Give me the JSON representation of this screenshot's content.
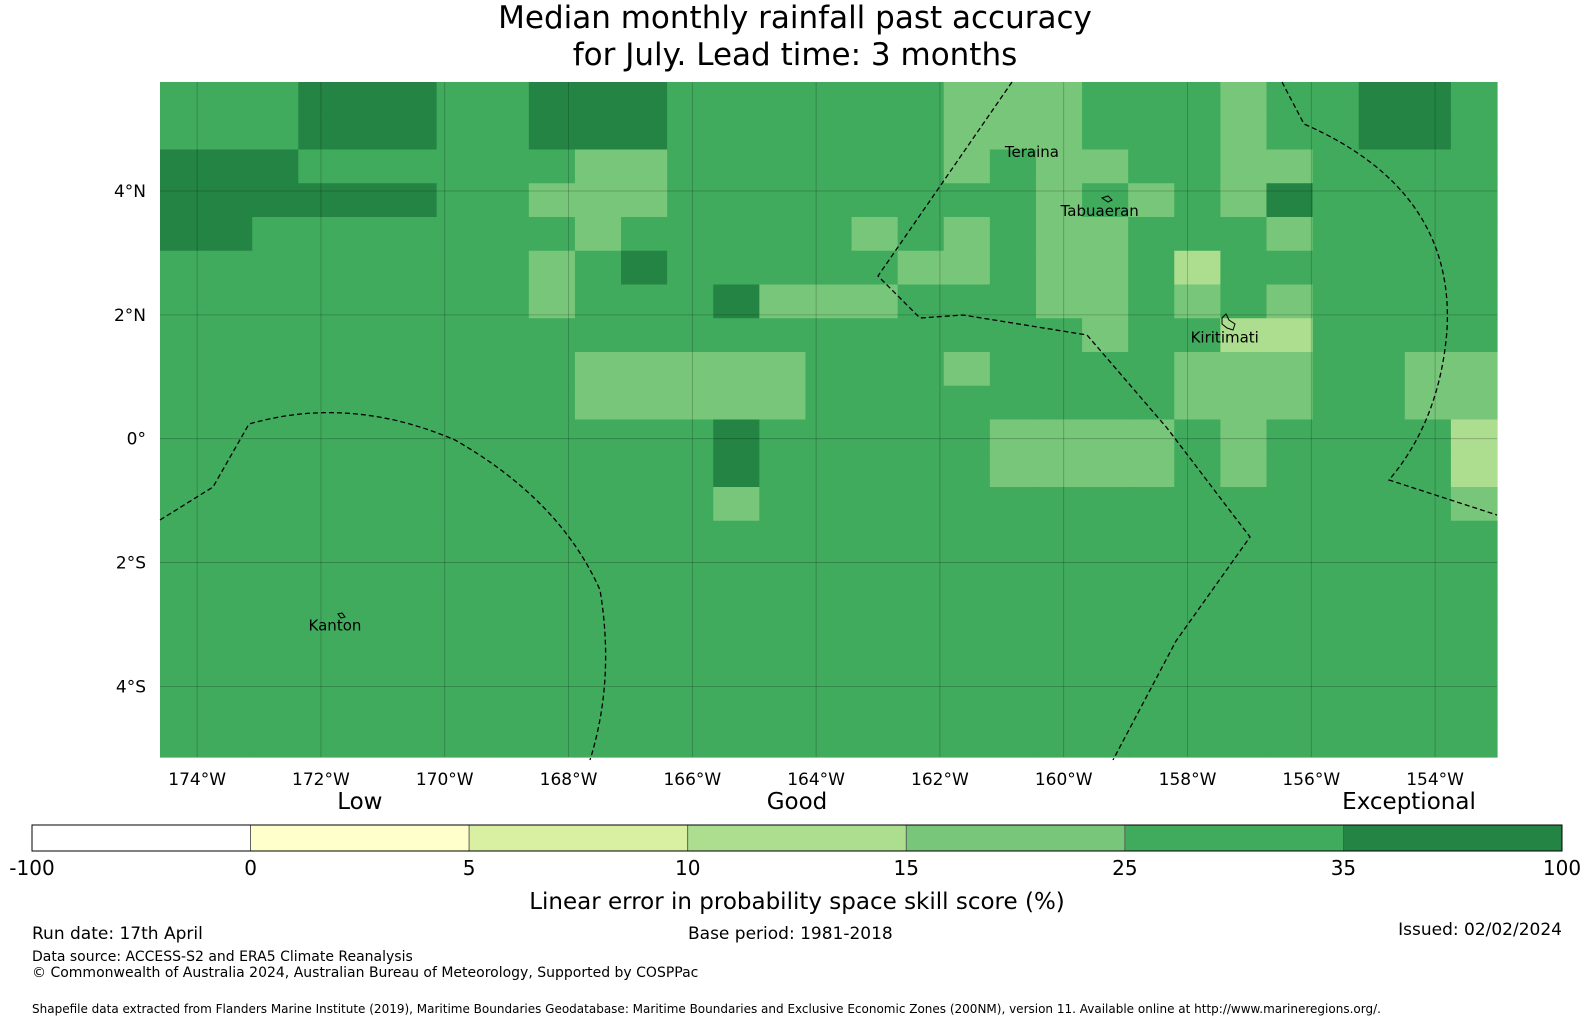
{
  "title_line1": "Median monthly rainfall past accuracy",
  "title_line2": "for July. Lead time: 3 months",
  "places": [
    {
      "name": "Teraina",
      "lon": -160.95,
      "lat": 4.55
    },
    {
      "name": "Tabuaeran",
      "lon": -160.05,
      "lat": 3.6
    },
    {
      "name": "Kiritimati",
      "lon": -157.95,
      "lat": 1.55
    },
    {
      "name": "Kanton",
      "lon": -172.2,
      "lat": -3.1
    }
  ],
  "lon_ticks": [
    "174°W",
    "172°W",
    "170°W",
    "168°W",
    "166°W",
    "164°W",
    "162°W",
    "160°W",
    "158°W",
    "156°W",
    "154°W"
  ],
  "lat_ticks": [
    "4°N",
    "2°N",
    "0°",
    "2°S",
    "4°S"
  ],
  "colorbar": {
    "bounds": [
      "-100",
      "0",
      "5",
      "10",
      "15",
      "25",
      "35",
      "100"
    ],
    "colors": [
      "#ffffff",
      "#ffffcc",
      "#d9f0a3",
      "#addd8e",
      "#78c679",
      "#41ab5d",
      "#238443"
    ],
    "categories": [
      "Low",
      "Good",
      "Exceptional"
    ],
    "label": "Linear error in probability space skill score (%)"
  },
  "footer": {
    "run_date": "Run date: 17th April",
    "base_period": "Base period: 1981-2018",
    "issued": "Issued: 02/02/2024",
    "data_source": "Data source: ACCESS-S2 and ERA5 Climate Reanalysis",
    "copyright": "© Commonwealth of Australia 2024, Australian Bureau of Meteorology, Supported by COSPPac",
    "shapefile": "Shapefile data extracted from Flanders Marine Institute (2019), Maritime Boundaries Geodatabase: Maritime Boundaries and Exclusive Economic Zones (200NM), version 11. Available online at http://www.marineregions.org/."
  },
  "grid_cells": [
    "55566655666555555444555455665",
    "55566655666555555444555455665",
    "66655555544555555454455445555",
    "66666655444555555554545465555",
    "66555555545555545454455545555",
    "55555555456555554454453555555",
    "55555555455564445554454545555",
    "55555555555555555555455335555",
    "55555555544444555455554445544",
    "55555555544444555555554445544",
    "55555555555565555544445455553",
    "55555555555565555544445455553",
    "55555555555545555555555555554",
    "55555555555555555555555555555",
    "55555555555555555555555555555",
    "55555555555555555555555555555",
    "55555555555555555555555555555",
    "55555555555555555555555555555",
    "55555555555555555555555555555",
    "55555555555555555555555555555"
  ]
}
